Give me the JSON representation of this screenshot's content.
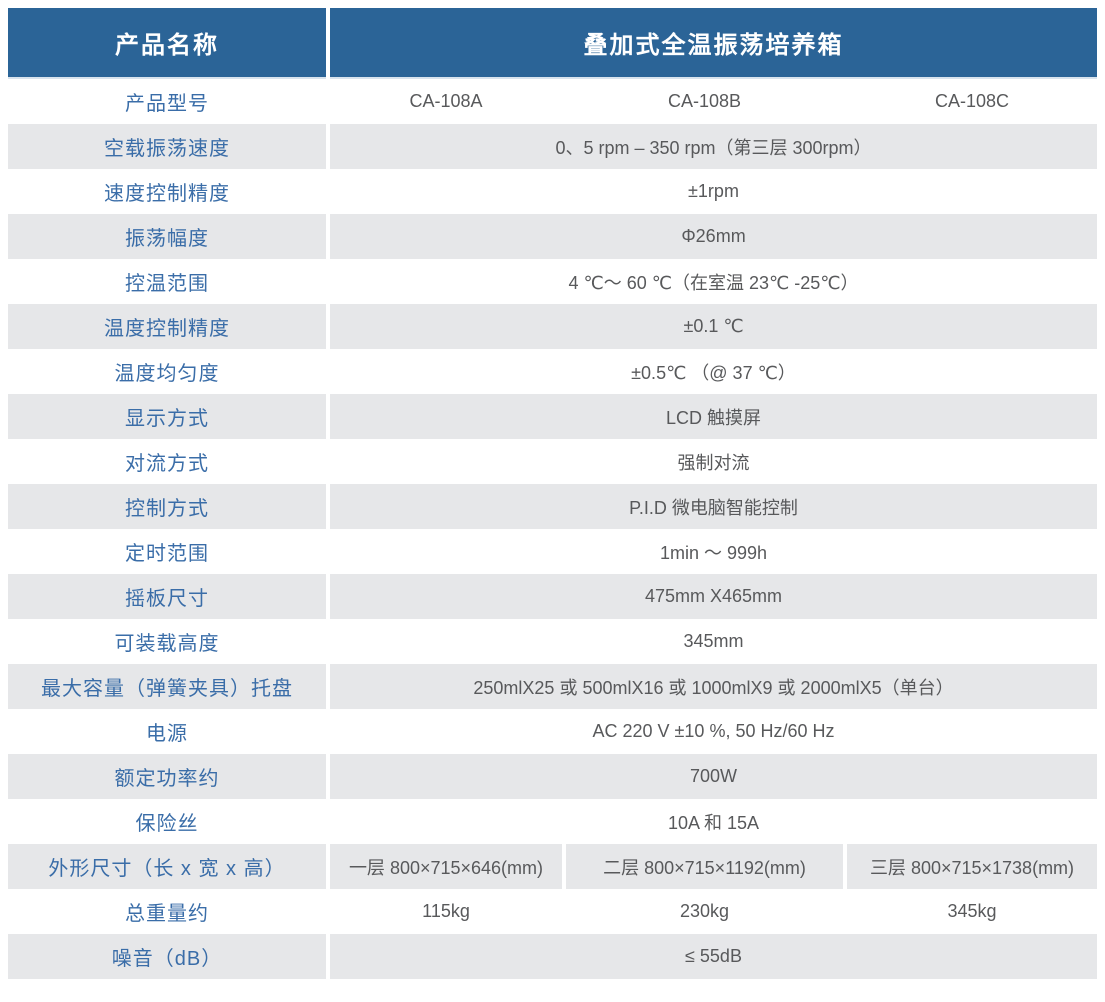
{
  "theme": {
    "header_bg": "#2b6497",
    "header_fg": "#ffffff",
    "shade_bg": "#e6e7e9",
    "label_fg": "#3a6da8",
    "value_fg": "#58595b"
  },
  "table": {
    "header": {
      "label": "产品名称",
      "title": "叠加式全温振荡培养箱"
    },
    "rows": [
      {
        "label": "产品型号",
        "cells": [
          "CA-108A",
          "CA-108B",
          "CA-108C"
        ]
      },
      {
        "label": "空载振荡速度",
        "value": "0、5 rpm – 350 rpm（第三层 300rpm）"
      },
      {
        "label": "速度控制精度",
        "value": "±1rpm"
      },
      {
        "label": "振荡幅度",
        "value": "Φ26mm"
      },
      {
        "label": "控温范围",
        "value": "4 ℃～ 60 ℃（在室温 23℃ -25℃）"
      },
      {
        "label": "温度控制精度",
        "value": "±0.1 ℃"
      },
      {
        "label": "温度均匀度",
        "value": "±0.5℃ （@ 37 ℃）"
      },
      {
        "label": "显示方式",
        "value": "LCD 触摸屏"
      },
      {
        "label": "对流方式",
        "value": "强制对流"
      },
      {
        "label": "控制方式",
        "value": "P.I.D 微电脑智能控制"
      },
      {
        "label": "定时范围",
        "value": "1min ～ 999h"
      },
      {
        "label": "摇板尺寸",
        "value": "475mm X465mm"
      },
      {
        "label": "可装载高度",
        "value": "345mm"
      },
      {
        "label": "最大容量（弹簧夹具）托盘",
        "value": "250mlX25 或 500mlX16 或 1000mlX9 或 2000mlX5（单台）"
      },
      {
        "label": "电源",
        "value": "AC 220 V ±10 %, 50 Hz/60 Hz"
      },
      {
        "label": "额定功率约",
        "value": "700W"
      },
      {
        "label": "保险丝",
        "value": "10A 和 15A"
      },
      {
        "label": "外形尺寸（长 x 宽 x 高）",
        "cells": [
          "一层 800×715×646(mm)",
          "二层 800×715×1192(mm)",
          "三层 800×715×1738(mm)"
        ]
      },
      {
        "label": "总重量约",
        "cells": [
          "115kg",
          "230kg",
          "345kg"
        ]
      },
      {
        "label": "噪音（dB）",
        "value": "≤ 55dB"
      }
    ]
  }
}
